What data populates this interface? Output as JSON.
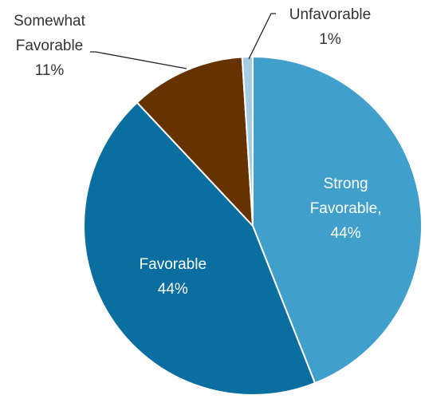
{
  "chart_data": {
    "type": "pie",
    "title": "",
    "start_angle_deg": 0,
    "direction": "clockwise",
    "slices": [
      {
        "name": "Strong Favorable",
        "value": 44,
        "color": "#41a0cb",
        "label_lines": [
          "Strong",
          "Favorable,",
          "44%"
        ],
        "label_position": "inside"
      },
      {
        "name": "Favorable",
        "value": 44,
        "color": "#0a6ea1",
        "label_lines": [
          "Favorable",
          "44%"
        ],
        "label_position": "inside"
      },
      {
        "name": "Somewhat Favorable",
        "value": 11,
        "color": "#663300",
        "label_lines": [
          "Somewhat",
          "Favorable",
          "11%"
        ],
        "label_position": "outside-left"
      },
      {
        "name": "Unfavorable",
        "value": 1,
        "color": "#a5cde4",
        "label_lines": [
          "Unfavorable",
          "1%"
        ],
        "label_position": "outside-top"
      }
    ]
  }
}
